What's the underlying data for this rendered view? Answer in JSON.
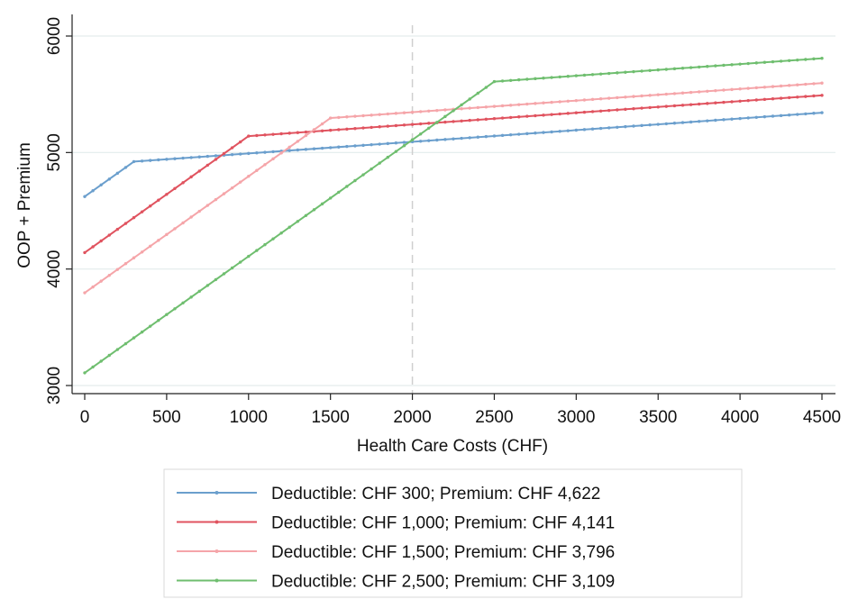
{
  "chart_data": {
    "type": "line",
    "xlabel": "Health Care Costs (CHF)",
    "ylabel": "OOP + Premium",
    "xlim": [
      0,
      4500
    ],
    "ylim": [
      3000,
      6000
    ],
    "xticks": [
      0,
      500,
      1000,
      1500,
      2000,
      2500,
      3000,
      3500,
      4000,
      4500
    ],
    "yticks": [
      3000,
      4000,
      5000,
      6000
    ],
    "grid": "horizontal",
    "reference_line_x": 2000,
    "legend_position": "bottom",
    "series": [
      {
        "name": "Deductible: CHF 300; Premium: CHF 4,622",
        "color": "#6b9fcd",
        "points": [
          [
            0,
            4622
          ],
          [
            300,
            4922
          ],
          [
            4500,
            5342
          ]
        ]
      },
      {
        "name": "Deductible: CHF 1,000; Premium: CHF 4,141",
        "color": "#e0535f",
        "points": [
          [
            0,
            4141
          ],
          [
            1000,
            5141
          ],
          [
            4500,
            5491
          ]
        ]
      },
      {
        "name": "Deductible: CHF 1,500; Premium: CHF 3,796",
        "color": "#f5a5a9",
        "points": [
          [
            0,
            3796
          ],
          [
            1500,
            5296
          ],
          [
            4500,
            5596
          ]
        ]
      },
      {
        "name": "Deductible: CHF 2,500; Premium: CHF 3,109",
        "color": "#6fbe6f",
        "points": [
          [
            0,
            3109
          ],
          [
            2500,
            5609
          ],
          [
            4500,
            5809
          ]
        ]
      }
    ]
  }
}
